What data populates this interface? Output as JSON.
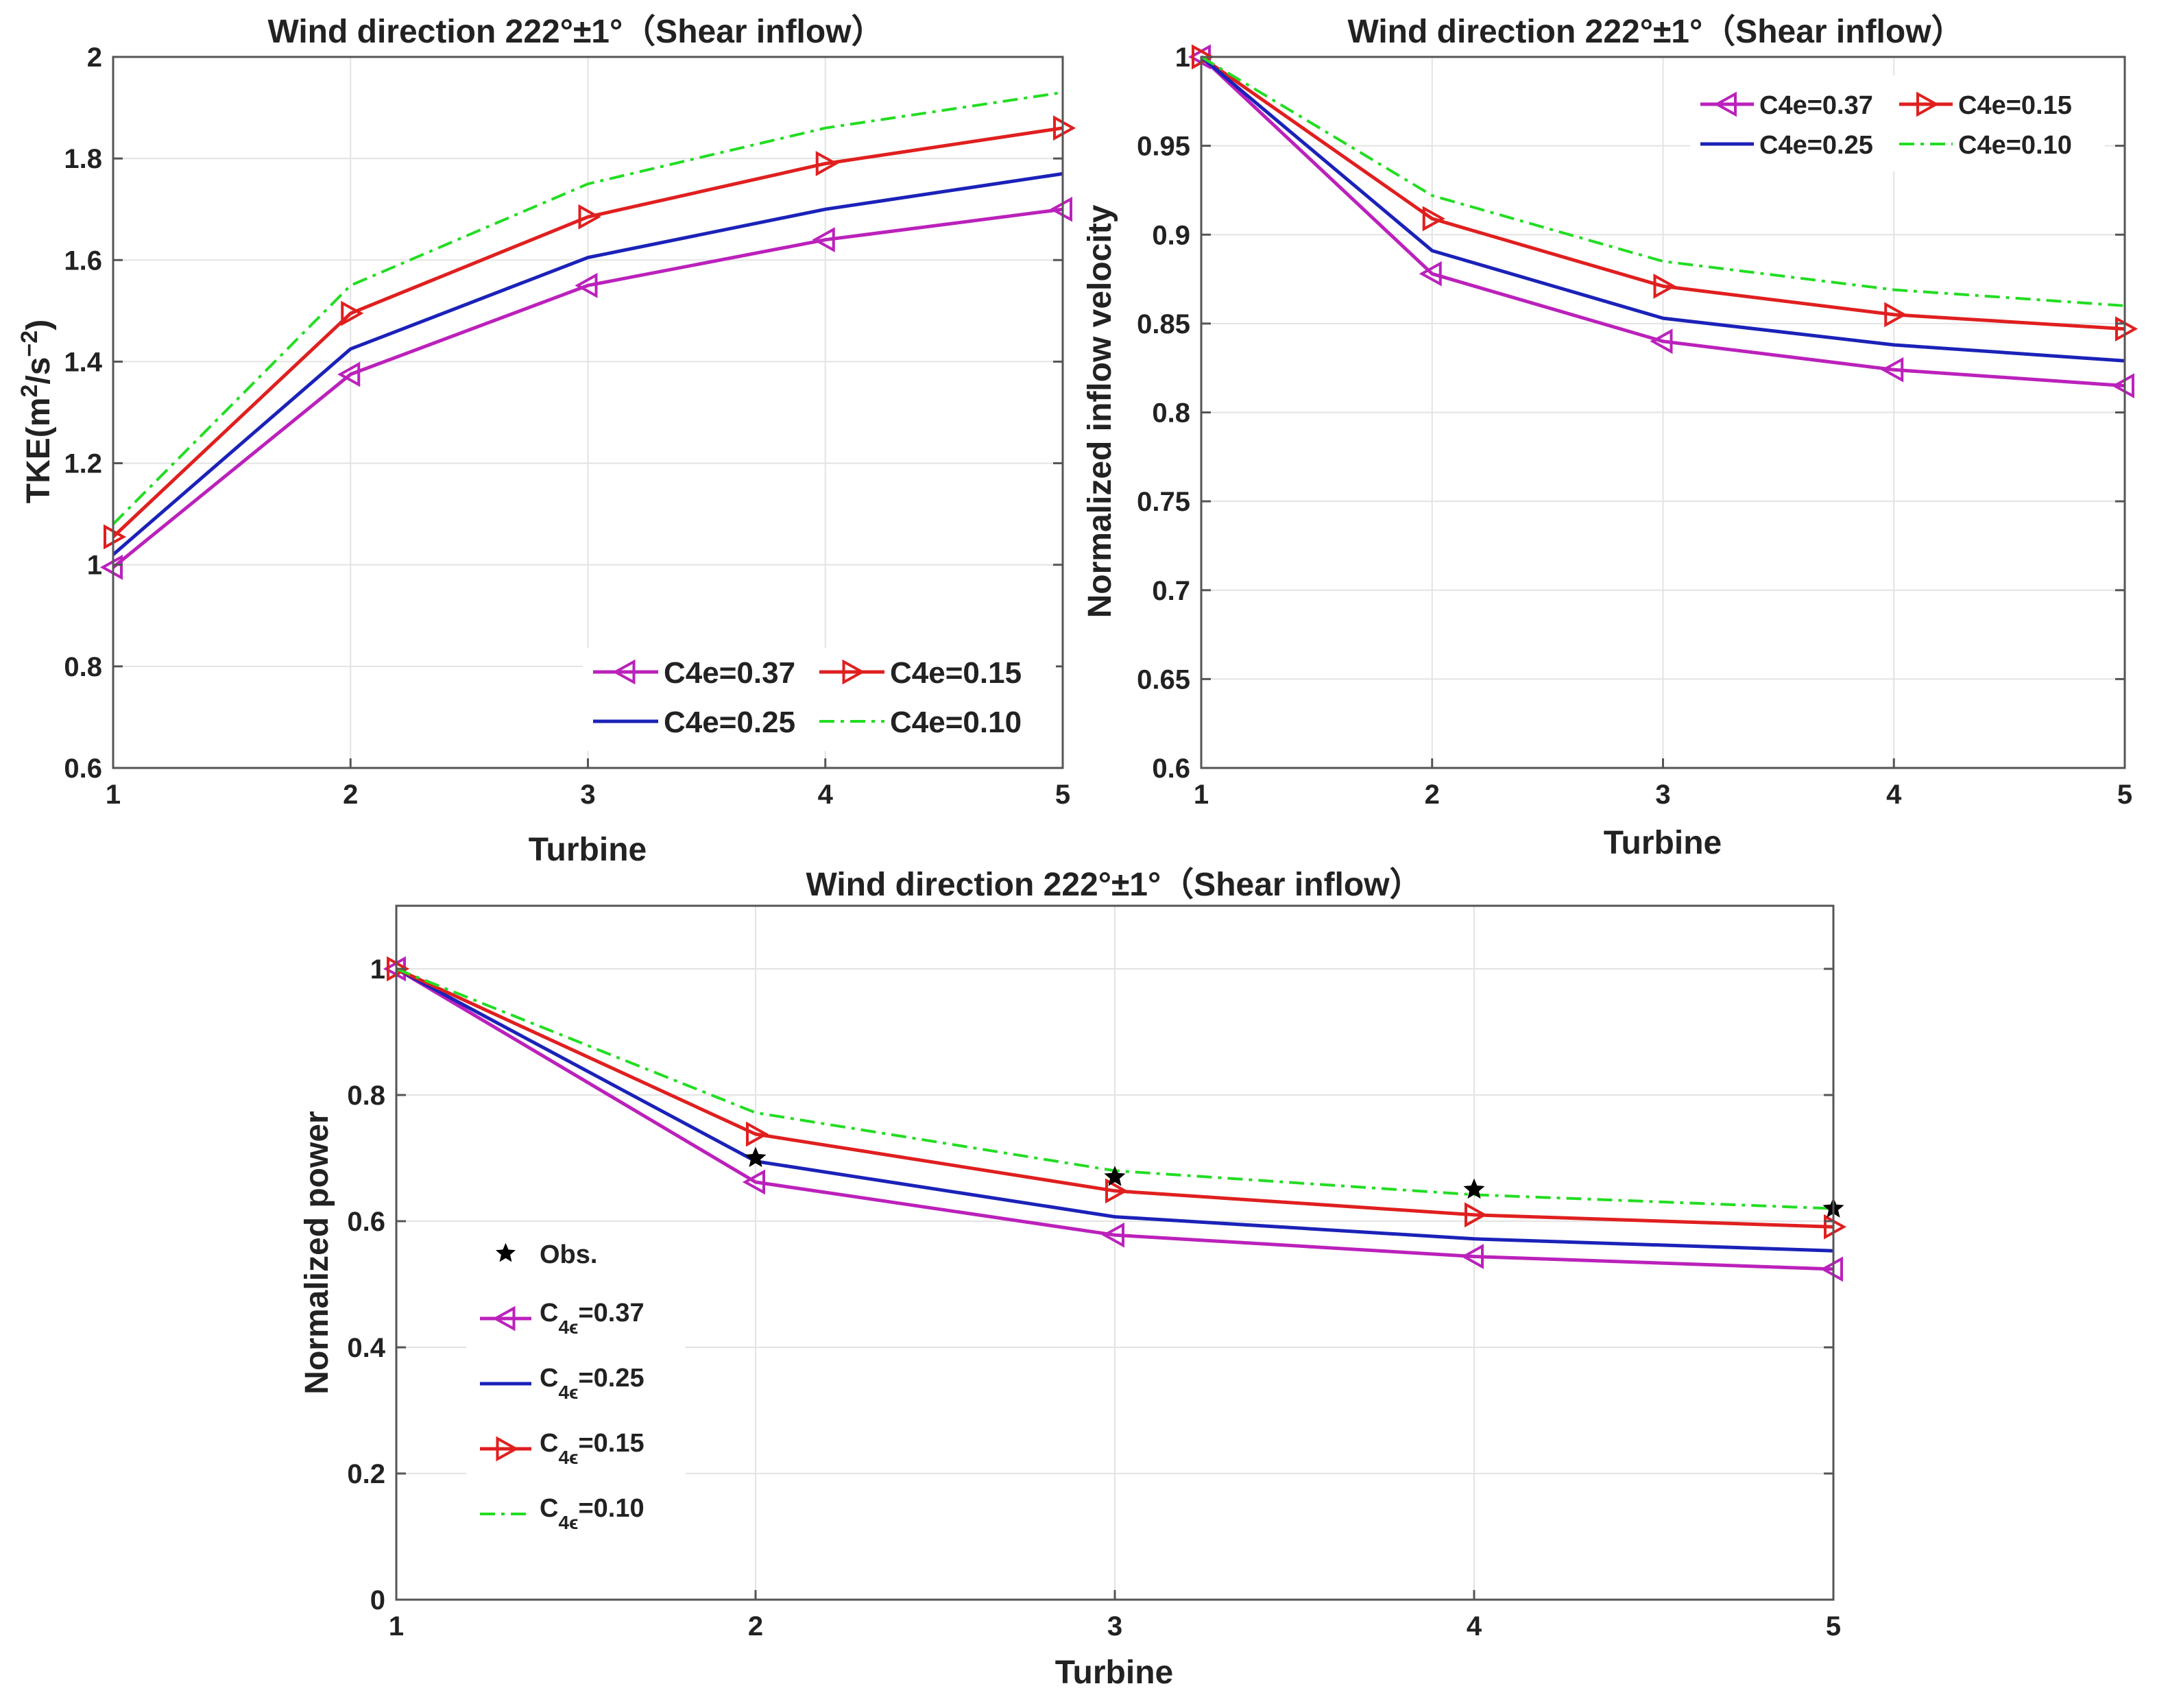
{
  "colors": {
    "c037": "#bb21bb",
    "c025": "#1b22b8",
    "c015": "#e01f1f",
    "c010": "#22dd22",
    "obs": "#000000"
  },
  "chart_data": [
    {
      "id": "tke",
      "type": "line",
      "title": "Wind direction 222°±1°（Shear inflow）",
      "xlabel": "Turbine",
      "ylabel_prefix": "TKE(m",
      "ylabel_sup1": "2",
      "ylabel_mid": "/s",
      "ylabel_sup2": "−2",
      "ylabel_suffix": ")",
      "xlim": [
        1,
        5
      ],
      "ylim": [
        0.6,
        2.0
      ],
      "xticks": [
        1,
        2,
        3,
        4,
        5
      ],
      "yticks": [
        0.6,
        0.8,
        1.0,
        1.2,
        1.4,
        1.6,
        1.8,
        2.0
      ],
      "ytick_labels": [
        "0.6",
        "0.8",
        "1",
        "1.2",
        "1.4",
        "1.6",
        "1.8",
        "2"
      ],
      "x": [
        1,
        2,
        3,
        4,
        5
      ],
      "legend_position": "bottom-right",
      "series": [
        {
          "name": "C4e=0.37",
          "values": [
            0.995,
            1.375,
            1.55,
            1.64,
            1.7
          ],
          "marker": "left-triangle",
          "dash": "solid",
          "colorKey": "c037"
        },
        {
          "name": "C4e=0.15",
          "values": [
            1.055,
            1.495,
            1.685,
            1.79,
            1.86
          ],
          "marker": "right-triangle",
          "dash": "solid",
          "colorKey": "c015"
        },
        {
          "name": "C4e=0.25",
          "values": [
            1.02,
            1.425,
            1.605,
            1.7,
            1.77
          ],
          "marker": "none",
          "dash": "solid",
          "colorKey": "c025"
        },
        {
          "name": "C4e=0.10",
          "values": [
            1.08,
            1.55,
            1.75,
            1.86,
            1.93
          ],
          "marker": "none",
          "dash": "dashdot",
          "colorKey": "c010"
        }
      ]
    },
    {
      "id": "velocity",
      "type": "line",
      "title": "Wind direction 222°±1°（Shear inflow）",
      "xlabel": "Turbine",
      "ylabel": "Normalized inflow velocity",
      "xlim": [
        1,
        5
      ],
      "ylim": [
        0.6,
        1.0
      ],
      "xticks": [
        1,
        2,
        3,
        4,
        5
      ],
      "yticks": [
        0.6,
        0.65,
        0.7,
        0.75,
        0.8,
        0.85,
        0.9,
        0.95,
        1.0
      ],
      "ytick_labels": [
        "0.6",
        "0.65",
        "0.7",
        "0.75",
        "0.8",
        "0.85",
        "0.9",
        "0.95",
        "1"
      ],
      "x": [
        1,
        2,
        3,
        4,
        5
      ],
      "legend_position": "top-right",
      "series": [
        {
          "name": "C4e=0.37",
          "values": [
            1.0,
            0.878,
            0.84,
            0.824,
            0.815
          ],
          "marker": "left-triangle",
          "dash": "solid",
          "colorKey": "c037"
        },
        {
          "name": "C4e=0.15",
          "values": [
            1.0,
            0.909,
            0.871,
            0.855,
            0.847
          ],
          "marker": "right-triangle",
          "dash": "solid",
          "colorKey": "c015"
        },
        {
          "name": "C4e=0.25",
          "values": [
            1.0,
            0.891,
            0.853,
            0.838,
            0.829
          ],
          "marker": "none",
          "dash": "solid",
          "colorKey": "c025"
        },
        {
          "name": "C4e=0.10",
          "values": [
            1.0,
            0.922,
            0.885,
            0.869,
            0.86
          ],
          "marker": "none",
          "dash": "dashdot",
          "colorKey": "c010"
        }
      ]
    },
    {
      "id": "power",
      "type": "line",
      "title": "Wind direction 222°±1°（Shear inflow）",
      "xlabel": "Turbine",
      "ylabel": "Normalized power",
      "xlim": [
        1,
        5
      ],
      "ylim": [
        0,
        1.1
      ],
      "xticks": [
        1,
        2,
        3,
        4,
        5
      ],
      "yticks": [
        0,
        0.2,
        0.4,
        0.6,
        0.8,
        1.0
      ],
      "ytick_labels": [
        "0",
        "0.2",
        "0.4",
        "0.6",
        "0.8",
        "1"
      ],
      "x": [
        1,
        2,
        3,
        4,
        5
      ],
      "legend_position": "left",
      "obs": {
        "name": "Obs.",
        "x": [
          2,
          3,
          4,
          5
        ],
        "values": [
          0.7,
          0.67,
          0.65,
          0.62
        ]
      },
      "series": [
        {
          "name": "C",
          "sub": "4ϵ",
          "suffix": "=0.37",
          "values": [
            1.0,
            0.662,
            0.578,
            0.544,
            0.524
          ],
          "marker": "left-triangle",
          "dash": "solid",
          "colorKey": "c037"
        },
        {
          "name": "C",
          "sub": "4ϵ",
          "suffix": "=0.25",
          "values": [
            1.0,
            0.695,
            0.607,
            0.572,
            0.553
          ],
          "marker": "none",
          "dash": "solid",
          "colorKey": "c025"
        },
        {
          "name": "C",
          "sub": "4ϵ",
          "suffix": "=0.15",
          "values": [
            1.0,
            0.738,
            0.648,
            0.61,
            0.591
          ],
          "marker": "right-triangle",
          "dash": "solid",
          "colorKey": "c015"
        },
        {
          "name": "C",
          "sub": "4ϵ",
          "suffix": "=0.10",
          "values": [
            1.0,
            0.772,
            0.68,
            0.642,
            0.62
          ],
          "marker": "none",
          "dash": "dashdot",
          "colorKey": "c010"
        }
      ]
    }
  ]
}
